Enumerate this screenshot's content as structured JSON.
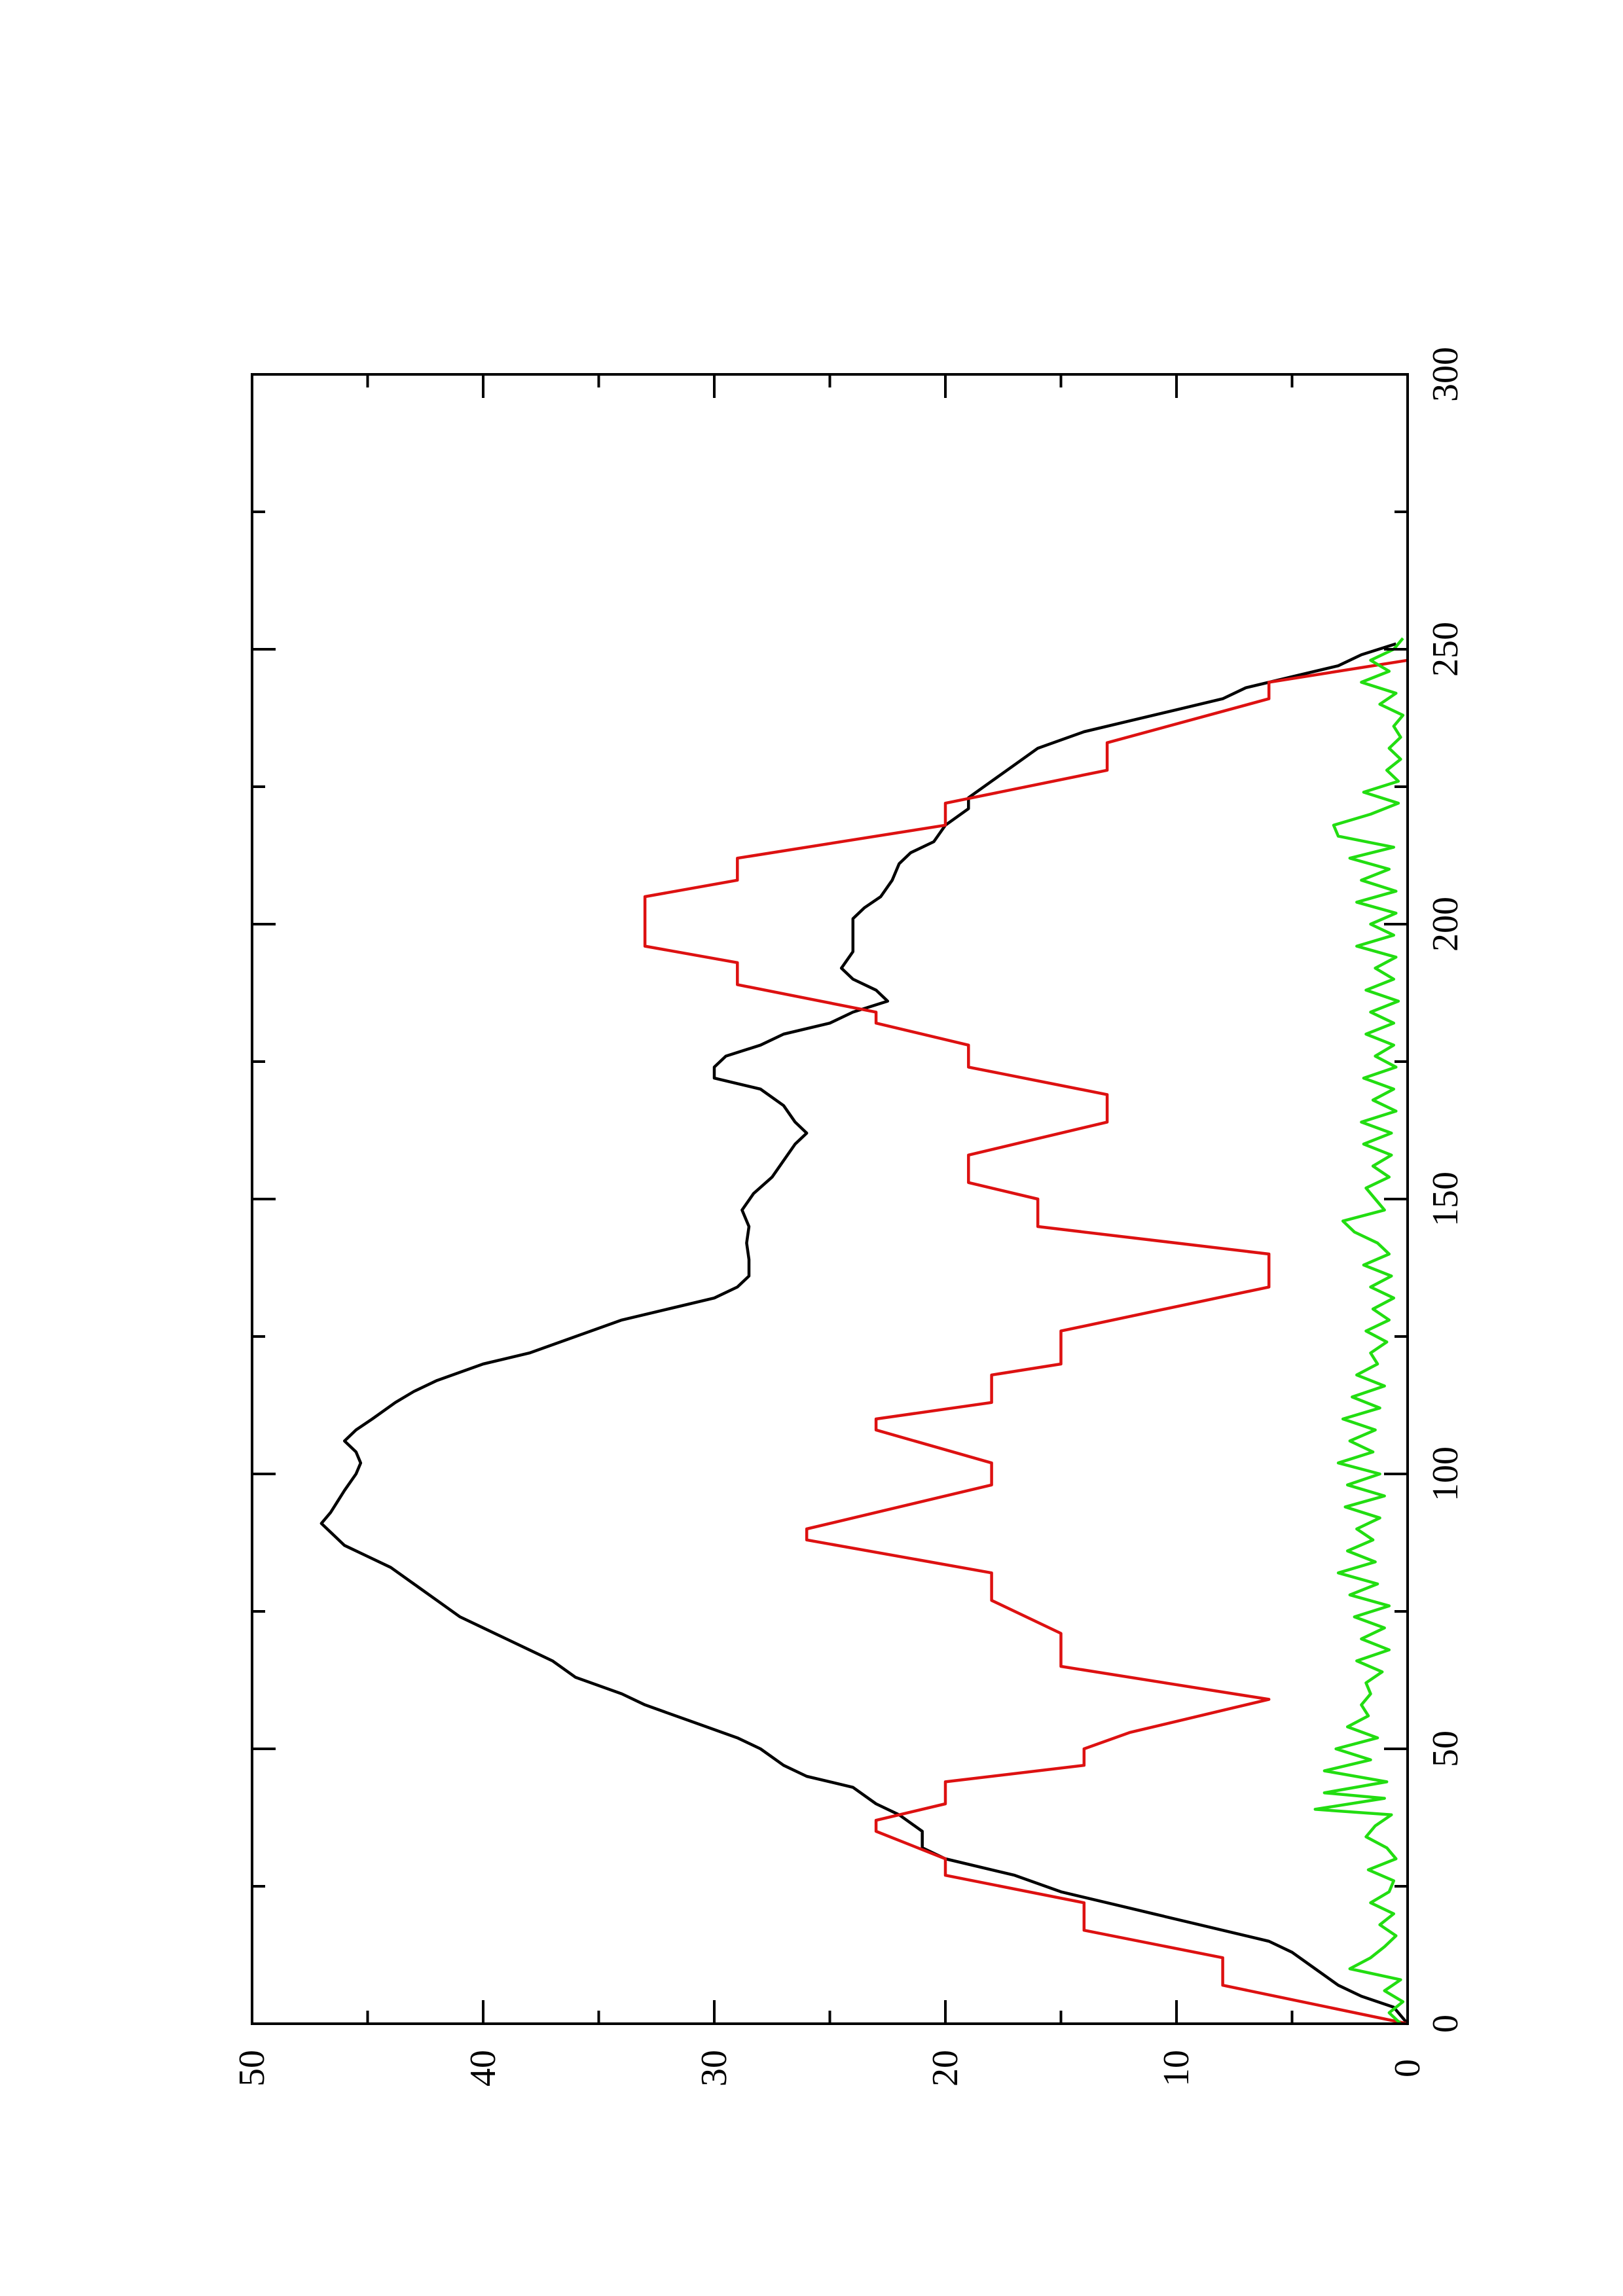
{
  "chart_data": {
    "type": "line",
    "orientation": "rotated-90-ccw",
    "title": "",
    "xlabel": "",
    "ylabel": "",
    "xlim": [
      0,
      300
    ],
    "ylim": [
      0,
      50
    ],
    "x_ticks_major": [
      0,
      50,
      100,
      150,
      200,
      250,
      300
    ],
    "x_ticks_minor": [
      25,
      75,
      125,
      175,
      225,
      275
    ],
    "y_ticks_major": [
      0,
      10,
      20,
      30,
      40,
      50
    ],
    "y_ticks_minor": [
      5,
      15,
      25,
      35,
      45
    ],
    "x_tick_labels": [
      "0",
      "50",
      "100",
      "150",
      "200",
      "250",
      "300"
    ],
    "y_tick_labels": [
      "0",
      "10",
      "20",
      "30",
      "40",
      "50"
    ],
    "grid": false,
    "legend": "none",
    "series": [
      {
        "color": "#000000",
        "points": [
          [
            0,
            0
          ],
          [
            3,
            0.6
          ],
          [
            5,
            2
          ],
          [
            7,
            3
          ],
          [
            10,
            4
          ],
          [
            13,
            5
          ],
          [
            15,
            6
          ],
          [
            18,
            9
          ],
          [
            20,
            11
          ],
          [
            22,
            13
          ],
          [
            24,
            15
          ],
          [
            27,
            17
          ],
          [
            30,
            20
          ],
          [
            32,
            21
          ],
          [
            35,
            21
          ],
          [
            38,
            22
          ],
          [
            40,
            23
          ],
          [
            43,
            24
          ],
          [
            45,
            26
          ],
          [
            47,
            27
          ],
          [
            50,
            28
          ],
          [
            52,
            29
          ],
          [
            55,
            31
          ],
          [
            58,
            33
          ],
          [
            60,
            34
          ],
          [
            63,
            36
          ],
          [
            66,
            37
          ],
          [
            68,
            38
          ],
          [
            70,
            39
          ],
          [
            72,
            40
          ],
          [
            74,
            41
          ],
          [
            77,
            42
          ],
          [
            80,
            43
          ],
          [
            83,
            44
          ],
          [
            85,
            45
          ],
          [
            87,
            46
          ],
          [
            89,
            46.5
          ],
          [
            91,
            47
          ],
          [
            93,
            46.6
          ],
          [
            95,
            46.3
          ],
          [
            97,
            46
          ],
          [
            100,
            45.5
          ],
          [
            102,
            45.3
          ],
          [
            104,
            45.5
          ],
          [
            106,
            46
          ],
          [
            108,
            45.5
          ],
          [
            110,
            44.8
          ],
          [
            113,
            43.8
          ],
          [
            115,
            43
          ],
          [
            117,
            42
          ],
          [
            120,
            40
          ],
          [
            122,
            38
          ],
          [
            125,
            36
          ],
          [
            128,
            34
          ],
          [
            130,
            32
          ],
          [
            132,
            30
          ],
          [
            134,
            29
          ],
          [
            136,
            28.5
          ],
          [
            139,
            28.5
          ],
          [
            142,
            28.6
          ],
          [
            145,
            28.5
          ],
          [
            148,
            28.8
          ],
          [
            151,
            28.3
          ],
          [
            154,
            27.5
          ],
          [
            157,
            27
          ],
          [
            160,
            26.5
          ],
          [
            162,
            26
          ],
          [
            164,
            26.5
          ],
          [
            167,
            27
          ],
          [
            170,
            28
          ],
          [
            172,
            30
          ],
          [
            174,
            30
          ],
          [
            176,
            29.5
          ],
          [
            178,
            28
          ],
          [
            180,
            27
          ],
          [
            182,
            25
          ],
          [
            184,
            24
          ],
          [
            186,
            22.5
          ],
          [
            188,
            23
          ],
          [
            190,
            24
          ],
          [
            192,
            24.5
          ],
          [
            195,
            24
          ],
          [
            198,
            24
          ],
          [
            201,
            24
          ],
          [
            203,
            23.5
          ],
          [
            205,
            22.8
          ],
          [
            208,
            22.3
          ],
          [
            211,
            22
          ],
          [
            213,
            21.5
          ],
          [
            215,
            20.5
          ],
          [
            218,
            20
          ],
          [
            221,
            19
          ],
          [
            223,
            19
          ],
          [
            226,
            18
          ],
          [
            229,
            17
          ],
          [
            232,
            16
          ],
          [
            235,
            14
          ],
          [
            237,
            12
          ],
          [
            239,
            10
          ],
          [
            241,
            8
          ],
          [
            243,
            7
          ],
          [
            245,
            5
          ],
          [
            247,
            3
          ],
          [
            249,
            2
          ],
          [
            251,
            0.5
          ]
        ]
      },
      {
        "color": "#dd1111",
        "points": [
          [
            0,
            0
          ],
          [
            7,
            8
          ],
          [
            12,
            8
          ],
          [
            17,
            14
          ],
          [
            22,
            14
          ],
          [
            27,
            20
          ],
          [
            30,
            20
          ],
          [
            35,
            23
          ],
          [
            37,
            23
          ],
          [
            40,
            20
          ],
          [
            44,
            20
          ],
          [
            47,
            14
          ],
          [
            50,
            14
          ],
          [
            53,
            12
          ],
          [
            57,
            8
          ],
          [
            59,
            6
          ],
          [
            65,
            15
          ],
          [
            71,
            15
          ],
          [
            77,
            18
          ],
          [
            82,
            18
          ],
          [
            88,
            26
          ],
          [
            90,
            26
          ],
          [
            98,
            18
          ],
          [
            102,
            18
          ],
          [
            108,
            23
          ],
          [
            110,
            23
          ],
          [
            113,
            18
          ],
          [
            118,
            18
          ],
          [
            120,
            15
          ],
          [
            126,
            15
          ],
          [
            134,
            6
          ],
          [
            140,
            6
          ],
          [
            145,
            16
          ],
          [
            150,
            16
          ],
          [
            153,
            19
          ],
          [
            158,
            19
          ],
          [
            161,
            16
          ],
          [
            164,
            13
          ],
          [
            169,
            13
          ],
          [
            174,
            19
          ],
          [
            178,
            19
          ],
          [
            182,
            23
          ],
          [
            184,
            23
          ],
          [
            189,
            29
          ],
          [
            193,
            29
          ],
          [
            196,
            33
          ],
          [
            205,
            33
          ],
          [
            208,
            29
          ],
          [
            212,
            29
          ],
          [
            218,
            20
          ],
          [
            222,
            20
          ],
          [
            228,
            13
          ],
          [
            233,
            13
          ],
          [
            241,
            6
          ],
          [
            244,
            6
          ],
          [
            248,
            0
          ]
        ]
      },
      {
        "color": "#22dd11",
        "points": [
          [
            0,
            0.3
          ],
          [
            2,
            0.8
          ],
          [
            4,
            0.2
          ],
          [
            6,
            1.0
          ],
          [
            8,
            0.3
          ],
          [
            10,
            2.5
          ],
          [
            12,
            1.6
          ],
          [
            14,
            1.0
          ],
          [
            16,
            0.5
          ],
          [
            18,
            1.2
          ],
          [
            20,
            0.6
          ],
          [
            22,
            1.6
          ],
          [
            24,
            0.8
          ],
          [
            26,
            0.6
          ],
          [
            28,
            1.7
          ],
          [
            30,
            0.5
          ],
          [
            32,
            0.9
          ],
          [
            34,
            1.8
          ],
          [
            36,
            1.4
          ],
          [
            38,
            0.7
          ],
          [
            39,
            4.0
          ],
          [
            41,
            1.0
          ],
          [
            42,
            3.6
          ],
          [
            44,
            0.9
          ],
          [
            46,
            3.6
          ],
          [
            48,
            1.6
          ],
          [
            50,
            3.1
          ],
          [
            52,
            1.3
          ],
          [
            54,
            2.6
          ],
          [
            56,
            1.7
          ],
          [
            58,
            2.0
          ],
          [
            60,
            1.6
          ],
          [
            62,
            1.8
          ],
          [
            64,
            1.1
          ],
          [
            66,
            2.2
          ],
          [
            68,
            0.8
          ],
          [
            70,
            2.0
          ],
          [
            72,
            1.0
          ],
          [
            74,
            2.3
          ],
          [
            76,
            0.8
          ],
          [
            78,
            2.5
          ],
          [
            80,
            1.3
          ],
          [
            82,
            3.0
          ],
          [
            84,
            1.4
          ],
          [
            86,
            2.6
          ],
          [
            88,
            1.5
          ],
          [
            90,
            2.2
          ],
          [
            92,
            1.2
          ],
          [
            94,
            2.7
          ],
          [
            96,
            1.0
          ],
          [
            98,
            2.6
          ],
          [
            100,
            1.2
          ],
          [
            102,
            3.0
          ],
          [
            104,
            1.5
          ],
          [
            106,
            2.5
          ],
          [
            108,
            1.4
          ],
          [
            110,
            2.8
          ],
          [
            112,
            1.2
          ],
          [
            114,
            2.4
          ],
          [
            116,
            1.0
          ],
          [
            118,
            2.2
          ],
          [
            120,
            1.3
          ],
          [
            122,
            1.6
          ],
          [
            124,
            0.9
          ],
          [
            126,
            1.8
          ],
          [
            128,
            0.8
          ],
          [
            130,
            1.5
          ],
          [
            132,
            0.6
          ],
          [
            134,
            1.6
          ],
          [
            136,
            0.7
          ],
          [
            138,
            1.9
          ],
          [
            140,
            0.8
          ],
          [
            142,
            1.3
          ],
          [
            144,
            2.3
          ],
          [
            146,
            2.8
          ],
          [
            148,
            1.0
          ],
          [
            150,
            1.4
          ],
          [
            152,
            1.8
          ],
          [
            154,
            0.8
          ],
          [
            156,
            1.5
          ],
          [
            158,
            0.7
          ],
          [
            160,
            1.9
          ],
          [
            162,
            0.7
          ],
          [
            164,
            2.0
          ],
          [
            166,
            0.5
          ],
          [
            168,
            1.5
          ],
          [
            170,
            0.6
          ],
          [
            172,
            1.9
          ],
          [
            174,
            0.5
          ],
          [
            176,
            1.4
          ],
          [
            178,
            0.6
          ],
          [
            180,
            1.8
          ],
          [
            182,
            0.6
          ],
          [
            184,
            1.6
          ],
          [
            186,
            0.4
          ],
          [
            188,
            1.8
          ],
          [
            190,
            0.6
          ],
          [
            192,
            1.4
          ],
          [
            194,
            0.5
          ],
          [
            196,
            2.2
          ],
          [
            198,
            0.6
          ],
          [
            200,
            1.6
          ],
          [
            202,
            0.5
          ],
          [
            204,
            2.2
          ],
          [
            206,
            0.5
          ],
          [
            208,
            2.0
          ],
          [
            210,
            0.8
          ],
          [
            212,
            2.5
          ],
          [
            214,
            0.6
          ],
          [
            216,
            3.0
          ],
          [
            218,
            3.2
          ],
          [
            220,
            1.6
          ],
          [
            222,
            0.4
          ],
          [
            224,
            1.9
          ],
          [
            226,
            0.4
          ],
          [
            228,
            0.9
          ],
          [
            230,
            0.3
          ],
          [
            232,
            0.8
          ],
          [
            234,
            0.3
          ],
          [
            236,
            0.6
          ],
          [
            238,
            0.2
          ],
          [
            240,
            1.2
          ],
          [
            242,
            0.5
          ],
          [
            244,
            2.0
          ],
          [
            246,
            0.8
          ],
          [
            248,
            1.6
          ],
          [
            250,
            0.6
          ],
          [
            252,
            0.2
          ]
        ]
      }
    ]
  }
}
